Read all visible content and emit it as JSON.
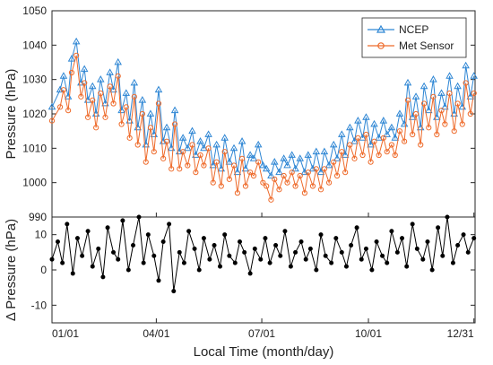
{
  "chart_data": [
    {
      "type": "line",
      "ylabel": "Pressure (hPa)",
      "ylim": [
        990,
        1050
      ],
      "yticks": [
        990,
        1000,
        1010,
        1020,
        1030,
        1040,
        1050
      ],
      "xlim": [
        0,
        365
      ],
      "legend": "top-right",
      "colors": {
        "ncep": "#2e86d4",
        "met": "#ee6a2a"
      },
      "series": [
        {
          "name": "NCEP",
          "marker": "triangle",
          "x": [
            0,
            7,
            10,
            14,
            17,
            21,
            25,
            28,
            31,
            35,
            38,
            42,
            46,
            50,
            53,
            57,
            60,
            64,
            67,
            71,
            74,
            78,
            81,
            85,
            88,
            92,
            96,
            99,
            103,
            106,
            110,
            113,
            117,
            121,
            124,
            128,
            131,
            135,
            139,
            142,
            146,
            149,
            153,
            157,
            160,
            164,
            167,
            171,
            174,
            178,
            182,
            185,
            189,
            192,
            196,
            200,
            203,
            207,
            210,
            214,
            218,
            221,
            225,
            228,
            232,
            235,
            239,
            243,
            246,
            250,
            253,
            257,
            261,
            264,
            268,
            271,
            275,
            278,
            282,
            286,
            289,
            293,
            296,
            300,
            304,
            307,
            311,
            314,
            318,
            321,
            325,
            329,
            332,
            336,
            339,
            343,
            347,
            350,
            354,
            357,
            361,
            364
          ],
          "y": [
            1022,
            1027,
            1031,
            1025,
            1036,
            1041,
            1029,
            1033,
            1024,
            1028,
            1020,
            1030,
            1023,
            1032,
            1027,
            1035,
            1021,
            1026,
            1018,
            1029,
            1016,
            1024,
            1011,
            1020,
            1014,
            1027,
            1012,
            1016,
            1010,
            1021,
            1009,
            1013,
            1010,
            1015,
            1008,
            1012,
            1010,
            1014,
            1005,
            1011,
            1004,
            1013,
            1006,
            1010,
            1003,
            1012,
            1004,
            1008,
            1007,
            1011,
            1005,
            1004,
            1002,
            1006,
            1003,
            1007,
            1005,
            1008,
            1004,
            1007,
            1003,
            1008,
            1004,
            1009,
            1003,
            1009,
            1005,
            1011,
            1007,
            1014,
            1008,
            1016,
            1012,
            1018,
            1013,
            1019,
            1011,
            1017,
            1013,
            1018,
            1014,
            1016,
            1013,
            1020,
            1017,
            1029,
            1019,
            1025,
            1016,
            1028,
            1021,
            1030,
            1019,
            1026,
            1022,
            1031,
            1020,
            1028,
            1022,
            1034,
            1025,
            1031
          ]
        },
        {
          "name": "Met Sensor",
          "marker": "circle",
          "x": [
            0,
            7,
            10,
            14,
            17,
            21,
            25,
            28,
            31,
            35,
            38,
            42,
            46,
            50,
            53,
            57,
            60,
            64,
            67,
            71,
            74,
            78,
            81,
            85,
            88,
            92,
            96,
            99,
            103,
            106,
            110,
            113,
            117,
            121,
            124,
            128,
            131,
            135,
            139,
            142,
            146,
            149,
            153,
            157,
            160,
            164,
            167,
            171,
            174,
            178,
            182,
            185,
            189,
            192,
            196,
            200,
            203,
            207,
            210,
            214,
            218,
            221,
            225,
            228,
            232,
            235,
            239,
            243,
            246,
            250,
            253,
            257,
            261,
            264,
            268,
            271,
            275,
            278,
            282,
            286,
            289,
            293,
            296,
            300,
            304,
            307,
            311,
            314,
            318,
            321,
            325,
            329,
            332,
            336,
            339,
            343,
            347,
            350,
            354,
            357,
            361,
            364
          ],
          "y": [
            1018,
            1022,
            1027,
            1021,
            1032,
            1037,
            1025,
            1029,
            1019,
            1024,
            1016,
            1026,
            1019,
            1028,
            1023,
            1031,
            1017,
            1022,
            1013,
            1025,
            1011,
            1020,
            1006,
            1016,
            1009,
            1023,
            1007,
            1012,
            1004,
            1017,
            1004,
            1009,
            1005,
            1011,
            1003,
            1008,
            1005,
            1010,
            1000,
            1006,
            999,
            1009,
            1001,
            1005,
            997,
            1007,
            999,
            1003,
            1002,
            1006,
            1000,
            999,
            995,
            1001,
            998,
            1002,
            1000,
            1003,
            999,
            1002,
            997,
            1003,
            999,
            1004,
            998,
            1004,
            1000,
            1006,
            1002,
            1009,
            1003,
            1011,
            1007,
            1013,
            1008,
            1014,
            1006,
            1012,
            1008,
            1013,
            1009,
            1011,
            1008,
            1015,
            1012,
            1024,
            1014,
            1020,
            1011,
            1023,
            1016,
            1025,
            1014,
            1021,
            1017,
            1026,
            1015,
            1023,
            1017,
            1029,
            1020,
            1026
          ]
        }
      ]
    },
    {
      "type": "line",
      "ylabel": "Δ Pressure (hPa)",
      "xlabel": "Local Time (month/day)",
      "ylim": [
        -15,
        15
      ],
      "yticks": [
        -10,
        0,
        10
      ],
      "xlim": [
        0,
        365
      ],
      "xtick_values": [
        0,
        90,
        181,
        273,
        364
      ],
      "xtick_labels": [
        "01/01",
        "04/01",
        "07/01",
        "10/01",
        "12/31"
      ],
      "color": "#000000",
      "series": [
        {
          "name": "",
          "marker": "circle",
          "x": [
            0,
            5,
            9,
            13,
            18,
            22,
            26,
            31,
            35,
            40,
            44,
            48,
            53,
            57,
            61,
            66,
            70,
            75,
            79,
            83,
            88,
            92,
            96,
            101,
            105,
            110,
            114,
            118,
            123,
            127,
            131,
            136,
            140,
            145,
            149,
            153,
            158,
            162,
            166,
            171,
            175,
            180,
            184,
            188,
            193,
            197,
            201,
            206,
            210,
            215,
            219,
            223,
            228,
            232,
            236,
            241,
            245,
            250,
            254,
            258,
            263,
            267,
            271,
            276,
            280,
            285,
            289,
            293,
            298,
            302,
            306,
            311,
            315,
            320,
            324,
            328,
            333,
            337,
            341,
            346,
            350,
            355,
            359,
            364
          ],
          "y": [
            3,
            8,
            2,
            13,
            -1,
            9,
            4,
            11,
            1,
            6,
            -2,
            12,
            5,
            3,
            14,
            0,
            7,
            15,
            2,
            10,
            4,
            -3,
            8,
            13,
            -6,
            5,
            2,
            11,
            6,
            0,
            9,
            3,
            7,
            1,
            10,
            4,
            2,
            8,
            5,
            -1,
            6,
            3,
            9,
            2,
            7,
            4,
            11,
            1,
            5,
            8,
            3,
            6,
            0,
            10,
            4,
            2,
            9,
            5,
            1,
            7,
            12,
            3,
            6,
            0,
            8,
            4,
            2,
            11,
            5,
            9,
            1,
            13,
            6,
            3,
            8,
            0,
            12,
            4,
            15,
            2,
            7,
            10,
            5,
            9
          ]
        }
      ]
    }
  ]
}
